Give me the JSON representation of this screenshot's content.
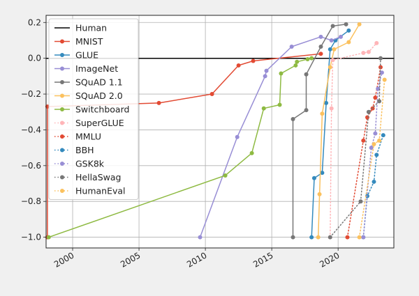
{
  "chart_data": {
    "type": "line",
    "title": "",
    "xlabel": "",
    "ylabel": "",
    "xlim": [
      1998.0,
      2024.2
    ],
    "ylim": [
      -1.06,
      0.24
    ],
    "xticks": [
      "2000",
      "2005",
      "2010",
      "2015",
      "2020"
    ],
    "xtick_values": [
      2000,
      2005,
      2010,
      2015,
      2020
    ],
    "yticks": [
      "0.2",
      "0.0",
      "−0.2",
      "−0.4",
      "−0.6",
      "−0.8",
      "−1.0"
    ],
    "ytick_values": [
      0.2,
      0.0,
      -0.2,
      -0.4,
      -0.6,
      -0.8,
      -1.0
    ],
    "grid": true,
    "legend_position": "upper-left",
    "series": [
      {
        "name": "Human",
        "color": "#000000",
        "style": "solid",
        "marker": false,
        "x": [
          1998.0,
          2024.2
        ],
        "y": [
          0,
          0
        ]
      },
      {
        "name": "MNIST",
        "color": "#e24a33",
        "style": "solid",
        "marker": true,
        "x": [
          1998.1,
          1998.1,
          2006.5,
          2010.5,
          2012.5,
          2013.6,
          2018.7
        ],
        "y": [
          -1.0,
          -0.27,
          -0.25,
          -0.2,
          -0.04,
          -0.015,
          0.025
        ]
      },
      {
        "name": "GLUE",
        "color": "#348abd",
        "style": "solid",
        "marker": true,
        "x": [
          2018.0,
          2018.2,
          2018.8,
          2019.1,
          2019.4,
          2019.8,
          2020.8
        ],
        "y": [
          -1.0,
          -0.67,
          -0.64,
          -0.25,
          0.05,
          0.1,
          0.155
        ]
      },
      {
        "name": "ImageNet",
        "color": "#988ed5",
        "style": "solid",
        "marker": true,
        "x": [
          2009.6,
          2012.4,
          2014.5,
          2014.6,
          2016.5,
          2018.7,
          2019.5,
          2020.2
        ],
        "y": [
          -1.0,
          -0.44,
          -0.1,
          -0.07,
          0.065,
          0.12,
          0.1,
          0.12
        ]
      },
      {
        "name": "SQuAD 1.1",
        "color": "#777777",
        "style": "solid",
        "marker": true,
        "x": [
          2016.6,
          2016.6,
          2017.6,
          2017.6,
          2018.7,
          2019.6,
          2020.6
        ],
        "y": [
          -1.0,
          -0.34,
          -0.29,
          -0.09,
          0.065,
          0.18,
          0.19
        ]
      },
      {
        "name": "SQuAD 2.0",
        "color": "#fbc15e",
        "style": "solid",
        "marker": true,
        "x": [
          2018.5,
          2018.6,
          2018.8,
          2019.4,
          2019.7,
          2020.8,
          2021.6
        ],
        "y": [
          -1.0,
          -0.76,
          -0.31,
          -0.05,
          0.05,
          0.09,
          0.19
        ]
      },
      {
        "name": "Switchboard",
        "color": "#8eba42",
        "style": "solid",
        "marker": true,
        "x": [
          1998.2,
          2011.5,
          2013.5,
          2014.4,
          2015.6,
          2015.7,
          2016.8,
          2016.9,
          2017.7,
          2018.0
        ],
        "y": [
          -1.0,
          -0.655,
          -0.53,
          -0.28,
          -0.26,
          -0.085,
          -0.04,
          -0.02,
          -0.005,
          0.0
        ]
      },
      {
        "name": "SuperGLUE",
        "color": "#ffb5b8",
        "style": "dotted",
        "marker": true,
        "x": [
          2019.4,
          2019.5,
          2019.6,
          2021.9,
          2022.3,
          2022.9
        ],
        "y": [
          -1.0,
          -0.28,
          -0.01,
          0.03,
          0.035,
          0.085
        ]
      },
      {
        "name": "MMLU",
        "color": "#e24a33",
        "style": "dotted",
        "marker": true,
        "x": [
          2020.7,
          2021.9,
          2022.2,
          2022.6,
          2022.8,
          2023.2
        ],
        "y": [
          -1.0,
          -0.46,
          -0.33,
          -0.28,
          -0.22,
          -0.05
        ]
      },
      {
        "name": "BBH",
        "color": "#348abd",
        "style": "dotted",
        "marker": true,
        "x": [
          2021.9,
          2022.2,
          2022.7,
          2022.9,
          2023.4
        ],
        "y": [
          -1.0,
          -0.77,
          -0.69,
          -0.54,
          -0.43
        ]
      },
      {
        "name": "GSK8k",
        "color": "#988ed5",
        "style": "dotted",
        "marker": true,
        "x": [
          2021.9,
          2022.5,
          2022.8,
          2023.0,
          2023.3
        ],
        "y": [
          -1.0,
          -0.5,
          -0.42,
          -0.17,
          -0.08
        ]
      },
      {
        "name": "HellaSwag",
        "color": "#777777",
        "style": "dotted",
        "marker": true,
        "x": [
          2019.4,
          2021.7,
          2022.3,
          2023.1,
          2023.2
        ],
        "y": [
          -1.0,
          -0.8,
          -0.3,
          -0.24,
          0.0
        ]
      },
      {
        "name": "HumanEval",
        "color": "#fbc15e",
        "style": "dotted",
        "marker": true,
        "x": [
          2021.6,
          2022.7,
          2023.1,
          2023.5
        ],
        "y": [
          -1.0,
          -0.48,
          -0.46,
          -0.12
        ]
      }
    ]
  }
}
